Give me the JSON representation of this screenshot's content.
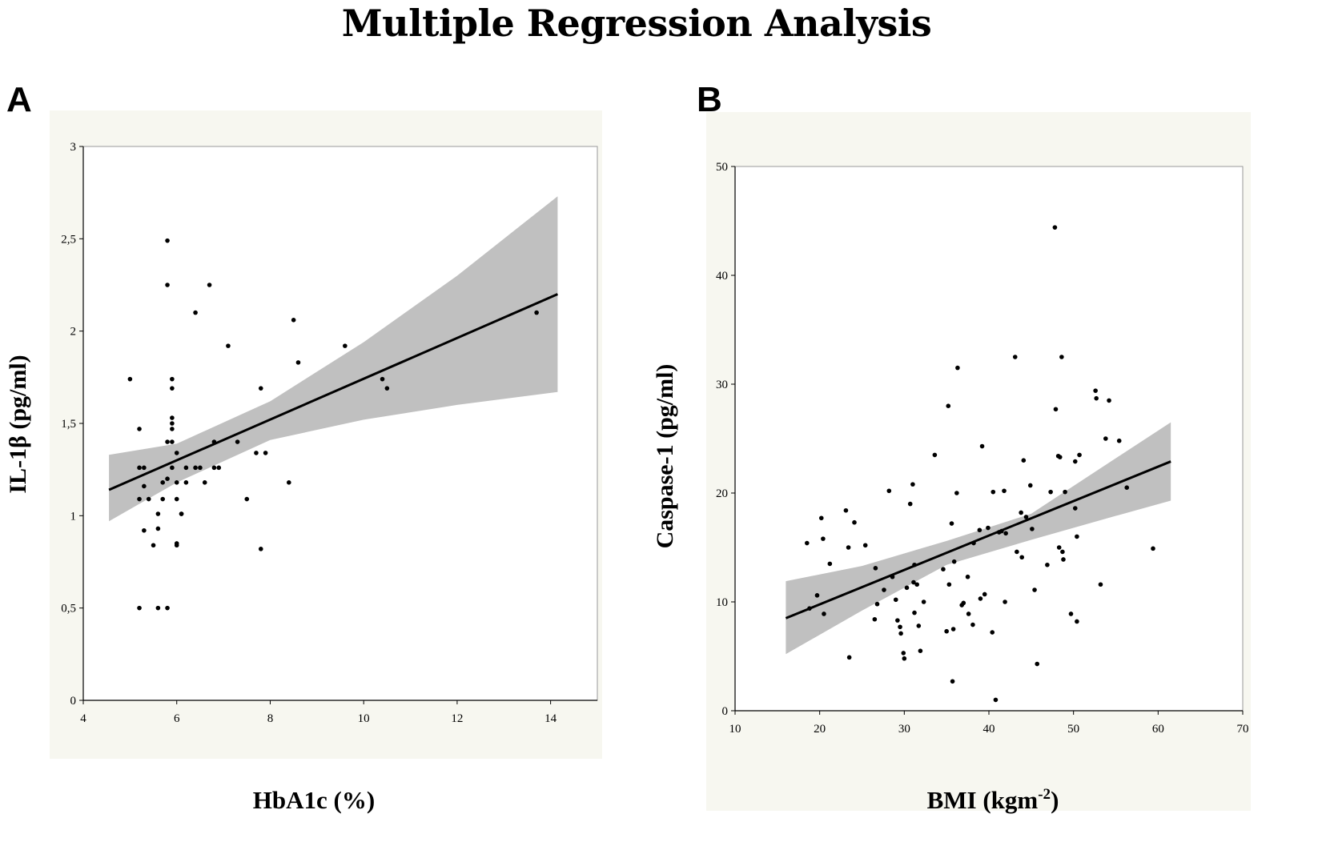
{
  "title": "Multiple Regression Analysis",
  "panels": [
    {
      "letter": "A"
    },
    {
      "letter": "B"
    }
  ],
  "colors": {
    "panel_background": "#f7f7f0",
    "plot_background": "#ffffff",
    "confidence_band": "#c0c0c0",
    "points": "#000000",
    "regression_line": "#000000"
  },
  "chart_data": [
    {
      "type": "scatter",
      "title": "",
      "xlabel": "HbA1c (%)",
      "ylabel": "IL-1β (pg/ml)",
      "xlim": [
        4,
        15
      ],
      "ylim": [
        0,
        3
      ],
      "xticks": [
        4,
        6,
        8,
        10,
        12,
        14
      ],
      "xtick_labels": [
        "4",
        "6",
        "8",
        "10",
        "12",
        "14"
      ],
      "yticks": [
        0,
        0.5,
        1,
        1.5,
        2,
        2.5,
        3
      ],
      "ytick_labels": [
        "0",
        "0,5",
        "1",
        "1,5",
        "2",
        "2,5",
        "3"
      ],
      "grid": false,
      "regression_line": {
        "x": [
          4.55,
          14.15
        ],
        "y": [
          1.14,
          2.2
        ]
      },
      "confidence_band": {
        "x": [
          4.55,
          6.0,
          8.0,
          10.0,
          12.0,
          14.15
        ],
        "upper": [
          1.33,
          1.39,
          1.62,
          1.94,
          2.3,
          2.73
        ],
        "lower": [
          0.97,
          1.18,
          1.41,
          1.52,
          1.6,
          1.67
        ]
      },
      "points": [
        [
          5.0,
          1.74
        ],
        [
          5.2,
          1.47
        ],
        [
          5.2,
          1.26
        ],
        [
          5.3,
          1.26
        ],
        [
          5.2,
          1.09
        ],
        [
          5.3,
          1.16
        ],
        [
          5.4,
          1.09
        ],
        [
          5.3,
          0.92
        ],
        [
          5.5,
          0.84
        ],
        [
          5.2,
          0.5
        ],
        [
          5.6,
          1.01
        ],
        [
          5.6,
          0.93
        ],
        [
          5.7,
          1.18
        ],
        [
          5.7,
          1.09
        ],
        [
          5.8,
          1.4
        ],
        [
          5.9,
          1.4
        ],
        [
          5.9,
          1.26
        ],
        [
          5.8,
          1.2
        ],
        [
          5.9,
          1.53
        ],
        [
          5.9,
          1.5
        ],
        [
          5.9,
          1.47
        ],
        [
          5.9,
          1.69
        ],
        [
          5.9,
          1.74
        ],
        [
          5.8,
          2.25
        ],
        [
          5.8,
          2.49
        ],
        [
          6.0,
          1.34
        ],
        [
          6.0,
          1.18
        ],
        [
          6.0,
          1.09
        ],
        [
          6.0,
          0.84
        ],
        [
          6.0,
          0.85
        ],
        [
          5.8,
          0.5
        ],
        [
          5.6,
          0.5
        ],
        [
          6.1,
          1.01
        ],
        [
          6.1,
          1.01
        ],
        [
          6.2,
          1.26
        ],
        [
          6.2,
          1.18
        ],
        [
          6.4,
          1.26
        ],
        [
          6.5,
          1.26
        ],
        [
          6.6,
          1.18
        ],
        [
          6.7,
          2.25
        ],
        [
          6.8,
          1.4
        ],
        [
          6.8,
          1.26
        ],
        [
          6.9,
          1.26
        ],
        [
          6.4,
          2.1
        ],
        [
          7.1,
          1.92
        ],
        [
          7.3,
          1.4
        ],
        [
          7.5,
          1.09
        ],
        [
          7.7,
          1.34
        ],
        [
          7.9,
          1.34
        ],
        [
          7.8,
          1.69
        ],
        [
          7.8,
          0.82
        ],
        [
          8.4,
          1.18
        ],
        [
          8.5,
          2.06
        ],
        [
          8.6,
          1.83
        ],
        [
          9.6,
          1.92
        ],
        [
          10.4,
          1.74
        ],
        [
          10.5,
          1.69
        ],
        [
          13.7,
          2.1
        ]
      ]
    },
    {
      "type": "scatter",
      "title": "",
      "xlabel": "BMI (kgm-2)",
      "xlabel_base": "BMI (kgm",
      "xlabel_sup": "-2",
      "xlabel_end": ")",
      "ylabel": "Caspase-1 (pg/ml)",
      "xlim": [
        10,
        70
      ],
      "ylim": [
        0,
        50
      ],
      "xticks": [
        10,
        20,
        30,
        40,
        50,
        60,
        70
      ],
      "xtick_labels": [
        "10",
        "20",
        "30",
        "40",
        "50",
        "60",
        "70"
      ],
      "yticks": [
        0,
        10,
        20,
        30,
        40,
        50
      ],
      "ytick_labels": [
        "0",
        "10",
        "20",
        "30",
        "40",
        "50"
      ],
      "grid": false,
      "regression_line": {
        "x": [
          16,
          61.5
        ],
        "y": [
          8.5,
          22.9
        ]
      },
      "confidence_band": {
        "x": [
          16,
          25,
          35,
          45,
          55,
          61.5
        ],
        "upper": [
          11.9,
          13.3,
          15.6,
          18.1,
          23.2,
          26.5
        ],
        "lower": [
          5.2,
          9.2,
          13.4,
          15.7,
          17.9,
          19.3
        ]
      },
      "points": [
        [
          18.5,
          15.4
        ],
        [
          18.8,
          9.4
        ],
        [
          19.7,
          10.6
        ],
        [
          20.2,
          17.7
        ],
        [
          20.4,
          15.8
        ],
        [
          20.5,
          8.9
        ],
        [
          21.2,
          13.5
        ],
        [
          23.1,
          18.4
        ],
        [
          23.4,
          15.0
        ],
        [
          23.5,
          4.9
        ],
        [
          24.1,
          17.3
        ],
        [
          25.4,
          15.2
        ],
        [
          26.5,
          8.4
        ],
        [
          26.6,
          13.1
        ],
        [
          26.8,
          9.8
        ],
        [
          27.6,
          11.1
        ],
        [
          28.2,
          20.2
        ],
        [
          28.6,
          12.3
        ],
        [
          29.0,
          10.2
        ],
        [
          29.2,
          8.3
        ],
        [
          29.5,
          7.7
        ],
        [
          29.6,
          7.1
        ],
        [
          29.9,
          5.3
        ],
        [
          30.0,
          4.8
        ],
        [
          30.3,
          11.3
        ],
        [
          30.7,
          19.0
        ],
        [
          31.0,
          20.8
        ],
        [
          31.1,
          11.8
        ],
        [
          31.2,
          13.4
        ],
        [
          31.2,
          9.0
        ],
        [
          31.5,
          11.6
        ],
        [
          31.7,
          7.8
        ],
        [
          31.9,
          5.5
        ],
        [
          32.3,
          10.0
        ],
        [
          33.6,
          23.5
        ],
        [
          34.6,
          13.0
        ],
        [
          35.0,
          7.3
        ],
        [
          35.3,
          11.6
        ],
        [
          35.2,
          28.0
        ],
        [
          35.6,
          17.2
        ],
        [
          35.7,
          2.7
        ],
        [
          35.8,
          7.5
        ],
        [
          35.9,
          13.7
        ],
        [
          36.3,
          31.5
        ],
        [
          36.2,
          20.0
        ],
        [
          36.8,
          9.7
        ],
        [
          37.0,
          9.9
        ],
        [
          37.5,
          12.3
        ],
        [
          37.6,
          8.9
        ],
        [
          38.1,
          7.9
        ],
        [
          38.2,
          15.4
        ],
        [
          38.9,
          16.6
        ],
        [
          39.0,
          10.3
        ],
        [
          39.2,
          24.3
        ],
        [
          39.5,
          10.7
        ],
        [
          39.9,
          16.8
        ],
        [
          40.4,
          7.2
        ],
        [
          40.5,
          20.1
        ],
        [
          40.8,
          1.0
        ],
        [
          41.2,
          16.4
        ],
        [
          41.5,
          16.5
        ],
        [
          41.8,
          20.2
        ],
        [
          41.9,
          10.0
        ],
        [
          42.0,
          16.3
        ],
        [
          43.1,
          32.5
        ],
        [
          43.3,
          14.6
        ],
        [
          43.8,
          18.2
        ],
        [
          43.9,
          14.1
        ],
        [
          44.1,
          23.0
        ],
        [
          44.4,
          17.8
        ],
        [
          44.9,
          20.7
        ],
        [
          45.1,
          16.7
        ],
        [
          45.4,
          11.1
        ],
        [
          45.7,
          4.3
        ],
        [
          46.9,
          13.4
        ],
        [
          47.3,
          20.1
        ],
        [
          47.8,
          44.4
        ],
        [
          47.9,
          27.7
        ],
        [
          48.2,
          23.4
        ],
        [
          48.4,
          23.3
        ],
        [
          48.3,
          15.0
        ],
        [
          48.6,
          32.5
        ],
        [
          48.7,
          14.6
        ],
        [
          48.8,
          13.9
        ],
        [
          49.0,
          20.1
        ],
        [
          49.7,
          8.9
        ],
        [
          50.2,
          18.6
        ],
        [
          50.2,
          22.9
        ],
        [
          50.4,
          8.2
        ],
        [
          50.4,
          16.0
        ],
        [
          50.7,
          23.5
        ],
        [
          52.6,
          29.4
        ],
        [
          52.7,
          28.7
        ],
        [
          53.2,
          11.6
        ],
        [
          53.8,
          25.0
        ],
        [
          54.2,
          28.5
        ],
        [
          55.4,
          24.8
        ],
        [
          56.3,
          20.5
        ],
        [
          59.4,
          14.9
        ]
      ]
    }
  ]
}
